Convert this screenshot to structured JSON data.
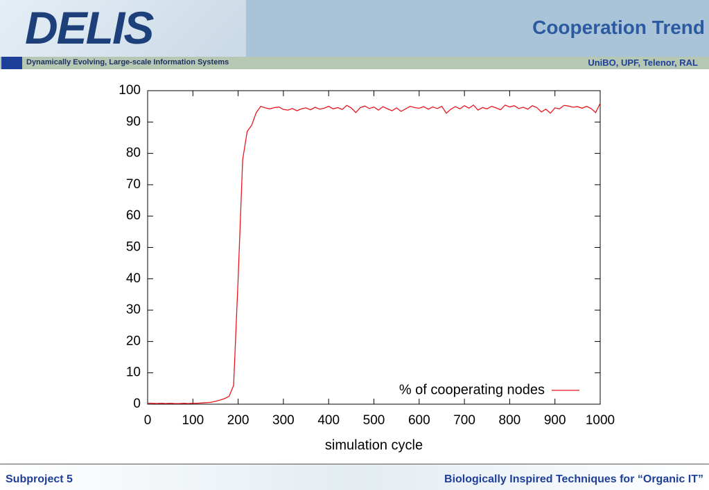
{
  "header": {
    "logo": "DELIS",
    "title": "Cooperation Trend",
    "tagline": "Dynamically Evolving, Large-scale Information Systems",
    "partners": "UniBO, UPF, Telenor, RAL"
  },
  "footer": {
    "left": "Subproject 5",
    "right": "Biologically Inspired Techniques for “Organic IT”"
  },
  "chart_data": {
    "type": "line",
    "x_label": "simulation cycle",
    "legend": "bottom-right",
    "xlim": [
      0,
      1000
    ],
    "xticks": [
      0,
      100,
      200,
      300,
      400,
      500,
      600,
      700,
      800,
      900,
      1000
    ],
    "ylim": [
      0,
      100
    ],
    "yticks": [
      0,
      10,
      20,
      30,
      40,
      50,
      60,
      70,
      80,
      90,
      100
    ],
    "x": [
      0,
      10,
      20,
      30,
      40,
      50,
      60,
      70,
      80,
      90,
      100,
      110,
      120,
      130,
      140,
      150,
      160,
      170,
      180,
      190,
      200,
      210,
      220,
      230,
      240,
      250,
      260,
      270,
      280,
      290,
      300,
      310,
      320,
      330,
      340,
      350,
      360,
      370,
      380,
      390,
      400,
      410,
      420,
      430,
      440,
      450,
      460,
      470,
      480,
      490,
      500,
      510,
      520,
      530,
      540,
      550,
      560,
      570,
      580,
      590,
      600,
      610,
      620,
      630,
      640,
      650,
      660,
      670,
      680,
      690,
      700,
      710,
      720,
      730,
      740,
      750,
      760,
      770,
      780,
      790,
      800,
      810,
      820,
      830,
      840,
      850,
      860,
      870,
      880,
      890,
      900,
      910,
      920,
      930,
      940,
      950,
      960,
      970,
      980,
      990,
      1000
    ],
    "series": [
      {
        "name": "% of cooperating nodes",
        "color": "#e8141c",
        "values": [
          0.3,
          0.3,
          0.2,
          0.3,
          0.2,
          0.3,
          0.2,
          0.2,
          0.3,
          0.2,
          0.3,
          0.3,
          0.4,
          0.5,
          0.6,
          0.9,
          1.3,
          1.8,
          2.5,
          6,
          40,
          78,
          87,
          89,
          93,
          95,
          94.5,
          94.2,
          94.6,
          94.8,
          94,
          93.8,
          94.3,
          93.6,
          94.2,
          94.5,
          93.9,
          94.7,
          94.1,
          94.4,
          95,
          94.2,
          94.6,
          94.0,
          95.3,
          94.5,
          93,
          94.6,
          95.1,
          94.3,
          94.8,
          93.8,
          94.9,
          94.2,
          93.6,
          94.5,
          93.4,
          94.2,
          95,
          94.6,
          94.4,
          94.9,
          94.1,
          94.8,
          94.3,
          95,
          92.8,
          94.1,
          94.9,
          94.2,
          95.2,
          94.4,
          95.4,
          93.8,
          94.6,
          94.2,
          95,
          94.5,
          93.9,
          95.4,
          94.8,
          95.2,
          94.3,
          94.7,
          94.1,
          95.2,
          94.6,
          93.2,
          94.1,
          92.8,
          94.5,
          94.2,
          95.3,
          95.1,
          94.7,
          94.9,
          94.4,
          95,
          94.3,
          93,
          96
        ]
      }
    ]
  }
}
